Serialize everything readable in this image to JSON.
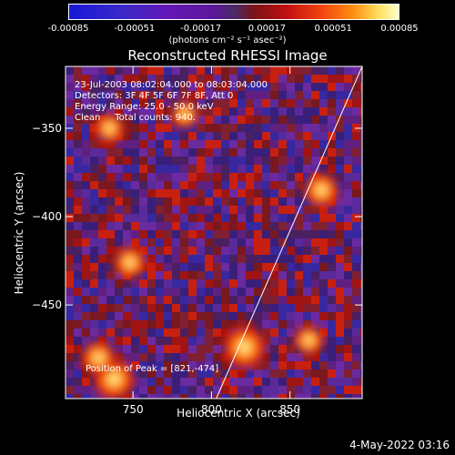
{
  "colorbar": {
    "ticks": [
      "-0.00085",
      "-0.00051",
      "-0.00017",
      "0.00017",
      "0.00051",
      "0.00085"
    ],
    "units_text": "(photons cm⁻² s⁻¹ asec⁻²)"
  },
  "annotation": {
    "lines": [
      "23-Jul-2003 08:02:04.000 to 08:03:04.000",
      "Detectors: 3F 4F 5F 6F 7F 8F, Att 0",
      "Energy Range: 25.0 - 50.0 keV",
      "Clean     Total counts: 940."
    ],
    "peak": "Position of Peak = [821,-474]"
  },
  "footer": {
    "date": "4-May-2022 03:16"
  },
  "chart_data": {
    "type": "heatmap",
    "title": "Reconstructed RHESSI Image",
    "xlabel": "Heliocentric X (arcsec)",
    "ylabel": "Heliocentric Y (arcsec)",
    "xlim": [
      707,
      896
    ],
    "ylim": [
      -503,
      -315
    ],
    "xticks": [
      750,
      800,
      850
    ],
    "yticks": [
      -350,
      -400,
      -450
    ],
    "colorbar_range": [
      -0.00085,
      0.00085
    ],
    "peak": {
      "x": 821,
      "y": -474
    },
    "limb_line": [
      [
        803,
        -503
      ],
      [
        896,
        -315
      ]
    ],
    "bright_sources": [
      {
        "x": 821,
        "y": -474,
        "level": 1.0
      },
      {
        "x": 738,
        "y": -492,
        "level": 0.95
      },
      {
        "x": 728,
        "y": -480,
        "level": 0.8
      },
      {
        "x": 748,
        "y": -426,
        "level": 0.75
      },
      {
        "x": 870,
        "y": -385,
        "level": 0.8
      },
      {
        "x": 735,
        "y": -350,
        "level": 0.7
      },
      {
        "x": 783,
        "y": -342,
        "level": 0.65
      },
      {
        "x": 862,
        "y": -470,
        "level": 0.7
      }
    ],
    "grid": false
  }
}
